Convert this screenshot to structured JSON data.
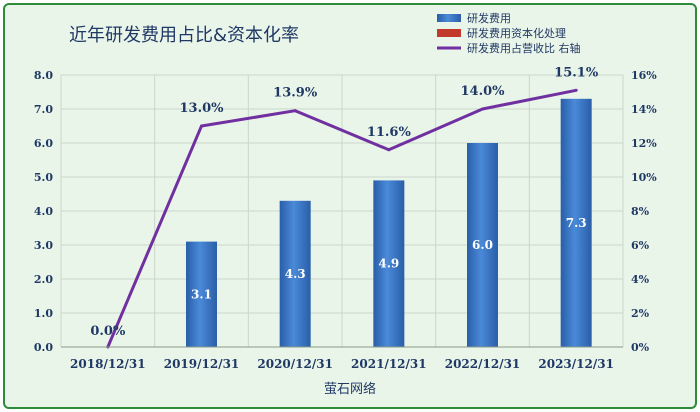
{
  "chart_data": {
    "type": "bar",
    "title": "近年研发费用占比&资本化率",
    "xlabel": "萤石网络",
    "ylabel": "",
    "categories": [
      "2018/12/31",
      "2019/12/31",
      "2020/12/31",
      "2021/12/31",
      "2022/12/31",
      "2023/12/31"
    ],
    "series": [
      {
        "name": "研发费用",
        "type": "bar",
        "axis": "left",
        "color": "#3a78c8",
        "values": [
          0,
          3.1,
          4.3,
          4.9,
          6.0,
          7.3
        ],
        "labels": [
          "",
          "3.1",
          "4.3",
          "4.9",
          "6.0",
          "7.3"
        ]
      },
      {
        "name": "研发费用资本化处理",
        "type": "bar",
        "axis": "left",
        "color": "#c0392b",
        "values": [
          0,
          0,
          0,
          0,
          0,
          0
        ]
      },
      {
        "name": "研发费用占营收比 右轴",
        "type": "line",
        "axis": "right",
        "color": "#7030a0",
        "values": [
          0.0,
          13.0,
          13.9,
          11.6,
          14.0,
          15.1
        ],
        "labels": [
          "0.0%",
          "13.0%",
          "13.9%",
          "11.6%",
          "14.0%",
          "15.1%"
        ]
      }
    ],
    "ylim": [
      0,
      8
    ],
    "yticks": [
      "0.0",
      "1.0",
      "2.0",
      "3.0",
      "4.0",
      "5.0",
      "6.0",
      "7.0",
      "8.0"
    ],
    "y2lim": [
      0,
      16
    ],
    "y2ticks": [
      "0%",
      "2%",
      "4%",
      "6%",
      "8%",
      "10%",
      "12%",
      "14%",
      "16%"
    ],
    "grid": true,
    "legend": "top-right"
  }
}
